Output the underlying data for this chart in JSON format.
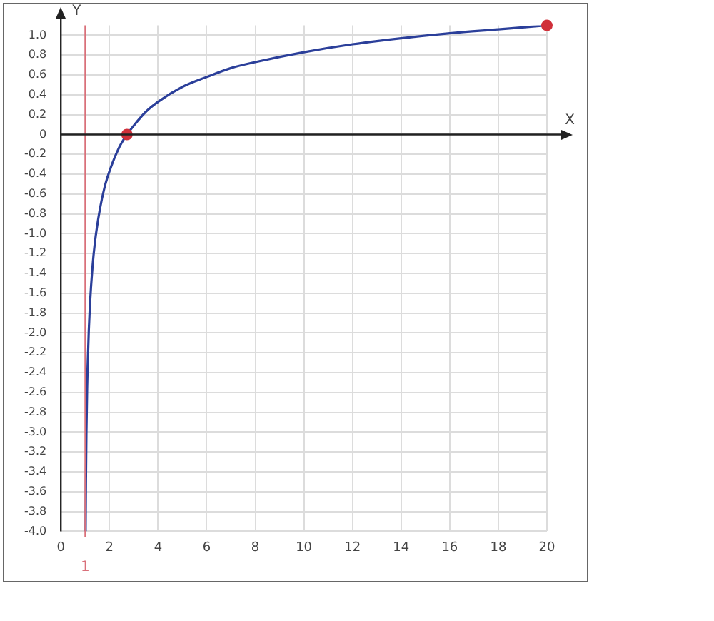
{
  "chart_data": {
    "type": "line",
    "xlabel": "X",
    "ylabel": "Y",
    "xlim": [
      0,
      20
    ],
    "xticks": [
      0,
      2,
      4,
      6,
      8,
      10,
      12,
      14,
      16,
      18,
      20
    ],
    "ylim": [
      -4,
      1.1
    ],
    "yticks": [
      {
        "value": -4,
        "label": "-4.0"
      },
      {
        "value": -3.8,
        "label": "-3.8"
      },
      {
        "value": -3.6,
        "label": "-3.6"
      },
      {
        "value": -3.4,
        "label": "-3.4"
      },
      {
        "value": -3.2,
        "label": "-3.2"
      },
      {
        "value": -3,
        "label": "-3.0"
      },
      {
        "value": -2.8,
        "label": "-2.8"
      },
      {
        "value": -2.6,
        "label": "-2.6"
      },
      {
        "value": -2.4,
        "label": "-2.4"
      },
      {
        "value": -2.2,
        "label": "-2.2"
      },
      {
        "value": -2,
        "label": "-2.0"
      },
      {
        "value": -1.8,
        "label": "-1.8"
      },
      {
        "value": -1.6,
        "label": "-1.6"
      },
      {
        "value": -1.4,
        "label": "-1.4"
      },
      {
        "value": -1.2,
        "label": "-1.2"
      },
      {
        "value": -1,
        "label": "-1.0"
      },
      {
        "value": -0.8,
        "label": "-0.8"
      },
      {
        "value": -0.6,
        "label": "-0.6"
      },
      {
        "value": -0.4,
        "label": "-0.4"
      },
      {
        "value": -0.2,
        "label": "-0.2"
      },
      0,
      {
        "value": 0.2,
        "label": "0.2"
      },
      {
        "value": 0.4,
        "label": "0.4"
      },
      {
        "value": 0.6,
        "label": "0.6"
      },
      {
        "value": 0.8,
        "label": "0.8"
      },
      {
        "value": 1,
        "label": "1.0"
      }
    ],
    "grid": true,
    "legend": false,
    "series": [
      {
        "type": "line",
        "color": "#2b3f9a",
        "marker": "none",
        "x": [
          1.018,
          1.03,
          1.05,
          1.08,
          1.1,
          1.15,
          1.2,
          1.3,
          1.4,
          1.6,
          1.8,
          2,
          2.4,
          2.72,
          3,
          3.5,
          4,
          5,
          6,
          7,
          8,
          10,
          12,
          14,
          16,
          18,
          20
        ],
        "values": [
          -4.0,
          -3.52,
          -3.02,
          -2.56,
          -2.35,
          -1.97,
          -1.7,
          -1.34,
          -1.09,
          -0.76,
          -0.53,
          -0.37,
          -0.13,
          0,
          0.09,
          0.23,
          0.33,
          0.48,
          0.58,
          0.67,
          0.73,
          0.83,
          0.91,
          0.97,
          1.02,
          1.06,
          1.1
        ]
      },
      {
        "type": "scatter",
        "color": "#d0303a",
        "marker": "circle",
        "x": [
          2.72,
          20
        ],
        "values": [
          0,
          1.1
        ]
      }
    ],
    "ref_lines": [
      {
        "axis": "x",
        "value": 1,
        "label": "1",
        "color": "#d9707a"
      }
    ]
  }
}
